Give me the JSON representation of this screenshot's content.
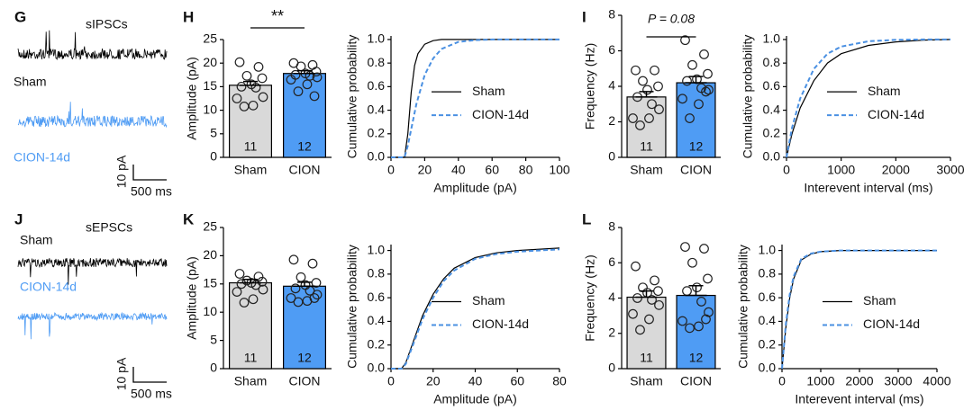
{
  "panels": {
    "letters": [
      "G",
      "H",
      "I",
      "J",
      "K",
      "L"
    ]
  },
  "traces": [
    {
      "title": "sIPSCs",
      "labels": [
        "Sham",
        "CION-14d"
      ],
      "scale": [
        "10 pA",
        "500 ms"
      ]
    },
    {
      "title": "sEPSCs",
      "labels": [
        "Sham",
        "CION-14d"
      ],
      "scale": [
        "10 pA",
        "500 ms"
      ]
    }
  ],
  "chart_data": [
    {
      "type": "bar",
      "ylabel": "Amplitude (pA)",
      "categories": [
        "Sham",
        "CION"
      ],
      "values": [
        15.3,
        17.8
      ],
      "errors": [
        0.8,
        0.6
      ],
      "n_labels": [
        11,
        12
      ],
      "colors": [
        "#d9d9d9",
        "#4f9cf4"
      ],
      "points": [
        [
          20.2,
          19.2,
          17.3,
          16.8,
          15.5,
          15.0,
          14.8,
          12.8,
          12.5,
          11.0,
          10.8
        ],
        [
          20.0,
          19.6,
          19.3,
          18.2,
          17.8,
          17.5,
          17.3,
          17.0,
          16.5,
          15.5,
          14.0,
          13.0
        ]
      ],
      "annotation": "**",
      "ylim": [
        0,
        25
      ],
      "yticks": [
        0,
        5,
        10,
        15,
        20,
        25
      ]
    },
    {
      "type": "line",
      "ylabel": "Cumulative probability",
      "xlabel": "Amplitude (pA)",
      "series": [
        {
          "name": "Sham",
          "color": "#000000",
          "dash": false,
          "x": [
            0,
            8,
            10,
            12,
            14,
            16,
            20,
            25,
            30,
            40,
            100
          ],
          "values": [
            0,
            0,
            0.2,
            0.55,
            0.78,
            0.88,
            0.96,
            0.99,
            1,
            1,
            1
          ]
        },
        {
          "name": "CION-14d",
          "color": "#4a90e2",
          "dash": true,
          "x": [
            0,
            8,
            10,
            15,
            20,
            25,
            30,
            40,
            50,
            60,
            100
          ],
          "values": [
            0,
            0,
            0.1,
            0.45,
            0.7,
            0.84,
            0.92,
            0.98,
            0.995,
            1,
            1
          ]
        }
      ],
      "xlim": [
        0,
        100
      ],
      "xticks": [
        0,
        20,
        40,
        60,
        80,
        100
      ],
      "ylim": [
        0,
        1.03
      ],
      "yticks": [
        {
          "value": 0,
          "label": "0.0"
        },
        {
          "value": 0.2,
          "label": "0.2"
        },
        {
          "value": 0.4,
          "label": "0.4"
        },
        {
          "value": 0.6,
          "label": "0.6"
        },
        {
          "value": 0.8,
          "label": "0.8"
        },
        {
          "value": 1,
          "label": "1.0"
        }
      ]
    },
    {
      "type": "bar",
      "ylabel": "Frequency (Hz)",
      "categories": [
        "Sham",
        "CION"
      ],
      "values": [
        3.4,
        4.2
      ],
      "errors": [
        0.3,
        0.35
      ],
      "n_labels": [
        11,
        12
      ],
      "colors": [
        "#d9d9d9",
        "#4f9cf4"
      ],
      "points": [
        [
          4.9,
          4.9,
          4.3,
          4.0,
          3.8,
          3.4,
          3.0,
          2.7,
          2.2,
          2.2,
          1.8
        ],
        [
          6.6,
          5.8,
          5.2,
          4.7,
          4.4,
          4.3,
          3.9,
          3.8,
          3.3,
          3.0,
          2.2,
          3.7
        ]
      ],
      "annotation": "P = 0.08",
      "ylim": [
        0,
        8
      ],
      "yticks": [
        0,
        2,
        4,
        6,
        8
      ]
    },
    {
      "type": "line",
      "ylabel": "Cumulative probability",
      "xlabel": "Interevent interval (ms)",
      "series": [
        {
          "name": "Sham",
          "color": "#000000",
          "dash": false,
          "x": [
            0,
            100,
            250,
            500,
            750,
            1000,
            1500,
            2000,
            2500,
            3000
          ],
          "values": [
            0,
            0.2,
            0.42,
            0.65,
            0.8,
            0.88,
            0.95,
            0.98,
            0.995,
            1
          ]
        },
        {
          "name": "CION-14d",
          "color": "#4a90e2",
          "dash": true,
          "x": [
            0,
            100,
            250,
            500,
            750,
            1000,
            1500,
            2000,
            2500,
            3000
          ],
          "values": [
            0,
            0.25,
            0.5,
            0.75,
            0.88,
            0.94,
            0.985,
            0.997,
            1,
            1
          ]
        }
      ],
      "xlim": [
        0,
        3000
      ],
      "xticks": [
        0,
        1000,
        2000,
        3000
      ],
      "ylim": [
        0,
        1.03
      ],
      "yticks": [
        {
          "value": 0,
          "label": "0.0"
        },
        {
          "value": 0.2,
          "label": "0.2"
        },
        {
          "value": 0.4,
          "label": "0.4"
        },
        {
          "value": 0.6,
          "label": "0.6"
        },
        {
          "value": 0.8,
          "label": "0.8"
        },
        {
          "value": 1,
          "label": "1.0"
        }
      ]
    },
    {
      "type": "bar",
      "ylabel": "Amplitude (pA)",
      "categories": [
        "Sham",
        "CION"
      ],
      "values": [
        15.2,
        14.6
      ],
      "errors": [
        0.6,
        0.7
      ],
      "n_labels": [
        11,
        12
      ],
      "colors": [
        "#d9d9d9",
        "#4f9cf4"
      ],
      "points": [
        [
          16.8,
          16.3,
          15.6,
          15.4,
          15.2,
          15.0,
          14.8,
          14.0,
          13.6,
          12.3,
          11.7
        ],
        [
          19.3,
          18.6,
          16.2,
          15.2,
          14.8,
          14.2,
          13.8,
          13.1,
          12.5,
          12.0,
          11.8,
          12.5
        ]
      ],
      "ylim": [
        0,
        25
      ],
      "yticks": [
        0,
        5,
        10,
        15,
        20,
        25
      ]
    },
    {
      "type": "line",
      "ylabel": "Cumulative probability",
      "xlabel": "Amplitude (pA)",
      "series": [
        {
          "name": "Sham",
          "color": "#000000",
          "dash": false,
          "x": [
            0,
            5,
            7,
            10,
            15,
            20,
            25,
            30,
            40,
            50,
            60,
            80
          ],
          "values": [
            0,
            0,
            0.05,
            0.2,
            0.45,
            0.63,
            0.76,
            0.85,
            0.94,
            0.98,
            1,
            1.02
          ]
        },
        {
          "name": "CION-14d",
          "color": "#4a90e2",
          "dash": true,
          "x": [
            0,
            5,
            7,
            10,
            15,
            20,
            25,
            30,
            40,
            50,
            60,
            80
          ],
          "values": [
            0,
            0,
            0.04,
            0.18,
            0.42,
            0.6,
            0.74,
            0.83,
            0.93,
            0.97,
            0.99,
            1.01
          ]
        }
      ],
      "xlim": [
        0,
        80
      ],
      "xticks": [
        0,
        20,
        40,
        60,
        80
      ],
      "ylim": [
        0,
        1.05
      ],
      "yticks": [
        {
          "value": 0,
          "label": "0.0"
        },
        {
          "value": 0.2,
          "label": "0.2"
        },
        {
          "value": 0.4,
          "label": "0.4"
        },
        {
          "value": 0.6,
          "label": "0.6"
        },
        {
          "value": 0.8,
          "label": "0.8"
        },
        {
          "value": 1,
          "label": "1.0"
        }
      ]
    },
    {
      "type": "bar",
      "ylabel": "Frequency (Hz)",
      "categories": [
        "Sham",
        "CION"
      ],
      "values": [
        4.05,
        4.15
      ],
      "errors": [
        0.35,
        0.55
      ],
      "n_labels": [
        11,
        12
      ],
      "colors": [
        "#d9d9d9",
        "#4f9cf4"
      ],
      "points": [
        [
          5.8,
          5.0,
          4.6,
          4.4,
          4.3,
          4.0,
          3.9,
          3.6,
          3.1,
          2.8,
          2.2
        ],
        [
          6.9,
          6.8,
          6.0,
          5.1,
          4.6,
          4.4,
          3.8,
          3.2,
          2.7,
          2.4,
          2.3,
          2.8
        ]
      ],
      "ylim": [
        0,
        8
      ],
      "yticks": [
        0,
        2,
        4,
        6,
        8
      ]
    },
    {
      "type": "line",
      "ylabel": "Cumulative probability",
      "xlabel": "Interevent interval (ms)",
      "series": [
        {
          "name": "Sham",
          "color": "#000000",
          "dash": false,
          "x": [
            0,
            100,
            200,
            300,
            500,
            750,
            1000,
            1500,
            2000,
            4000
          ],
          "values": [
            0,
            0.35,
            0.6,
            0.76,
            0.92,
            0.97,
            0.99,
            1,
            1,
            1
          ]
        },
        {
          "name": "CION-14d",
          "color": "#4a90e2",
          "dash": true,
          "x": [
            0,
            100,
            200,
            300,
            500,
            750,
            1000,
            1500,
            2000,
            4000
          ],
          "values": [
            0,
            0.38,
            0.63,
            0.78,
            0.93,
            0.975,
            0.99,
            1,
            1,
            1
          ]
        }
      ],
      "xlim": [
        0,
        4000
      ],
      "xticks": [
        0,
        1000,
        2000,
        3000,
        4000
      ],
      "ylim": [
        0,
        1.05
      ],
      "yticks": [
        {
          "value": 0,
          "label": "0.0"
        },
        {
          "value": 0.2,
          "label": "0.2"
        },
        {
          "value": 0.4,
          "label": "0.4"
        },
        {
          "value": 0.6,
          "label": "0.6"
        },
        {
          "value": 0.8,
          "label": "0.8"
        },
        {
          "value": 1,
          "label": "1.0"
        }
      ]
    }
  ]
}
